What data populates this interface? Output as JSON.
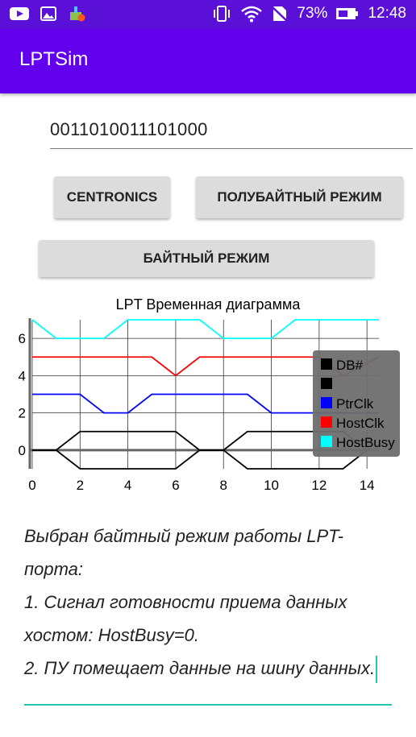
{
  "status_bar": {
    "battery_percent": "73%",
    "time": "12:48"
  },
  "app": {
    "title": "LPTSim"
  },
  "input": {
    "value": "0011010011101000"
  },
  "buttons": {
    "centronics": "CENTRONICS",
    "nibble": "ПОЛУБАЙТНЫЙ РЕЖИМ",
    "byte": "БАЙТНЫЙ РЕЖИМ"
  },
  "chart_data": {
    "type": "line",
    "title": "LPT Временная диаграмма",
    "xlim": [
      0,
      14.5
    ],
    "ylim": [
      -1,
      7
    ],
    "x_ticks": [
      "0",
      "2",
      "4",
      "6",
      "8",
      "10",
      "12",
      "14"
    ],
    "y_ticks": [
      "0",
      "2",
      "4",
      "6"
    ],
    "grid": true,
    "legend_position": "right",
    "series": [
      {
        "name": "DB#",
        "color": "#000000",
        "x": [
          0,
          1,
          2,
          6,
          7,
          8,
          9,
          13,
          14
        ],
        "y": [
          0,
          0,
          1,
          1,
          0,
          0,
          1,
          1,
          0
        ]
      },
      {
        "name": "",
        "color": "#000000",
        "x": [
          0,
          1,
          2,
          6,
          7,
          8,
          9,
          13,
          14
        ],
        "y": [
          0,
          0,
          -1,
          -1,
          0,
          0,
          -1,
          -1,
          0
        ]
      },
      {
        "name": "PtrClk",
        "color": "#0000ff",
        "x": [
          0,
          2,
          3,
          4,
          5,
          9,
          10,
          11,
          14.5
        ],
        "y": [
          3,
          3,
          2,
          2,
          3,
          3,
          2,
          2,
          2
        ]
      },
      {
        "name": "HostClk",
        "color": "#ff0000",
        "x": [
          0,
          5,
          6,
          7,
          12,
          13,
          14.5
        ],
        "y": [
          5,
          5,
          4,
          5,
          5,
          4,
          5
        ]
      },
      {
        "name": "HostBusy",
        "color": "#00ffff",
        "x": [
          0,
          1,
          3,
          4,
          7,
          8,
          10,
          11,
          14.5
        ],
        "y": [
          7,
          6,
          6,
          7,
          7,
          6,
          6,
          7,
          7
        ]
      }
    ]
  },
  "description": {
    "lines": [
      "Выбран байтный режим работы LPT-порта:",
      "1. Сигнал готовности приема данных хостом: HostBusy=0.",
      "2. ПУ помещает данные на шину данных."
    ]
  }
}
